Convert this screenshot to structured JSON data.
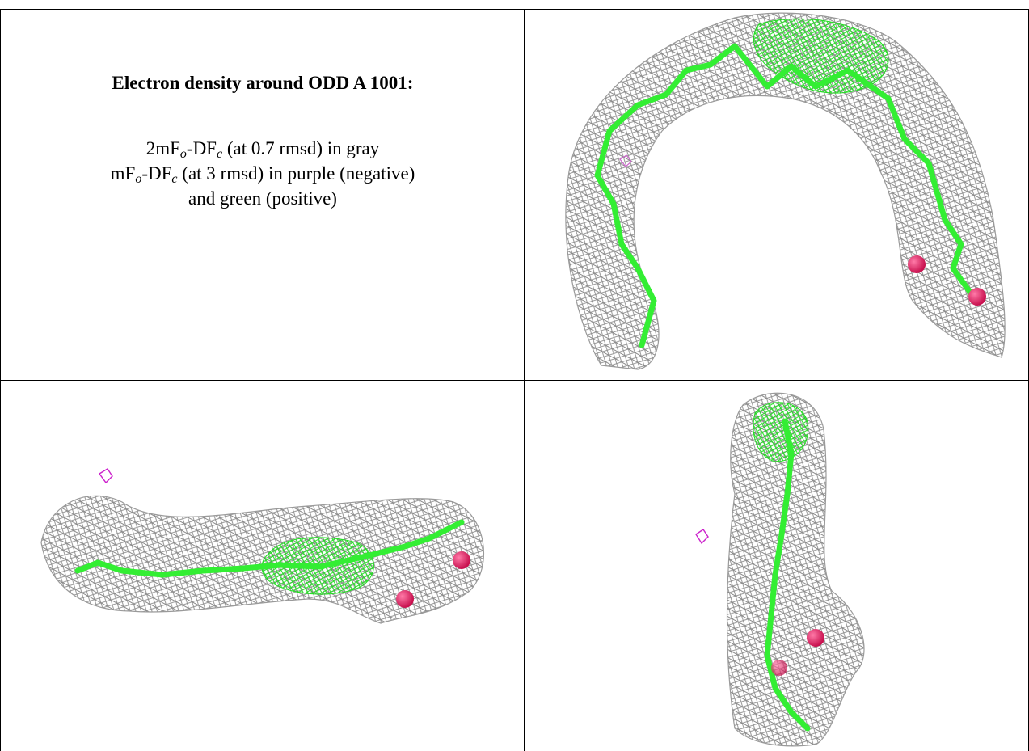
{
  "caption": {
    "title": "Electron density around ODD A 1001:",
    "map1_prefix": "2mF",
    "map1_sub1": "o",
    "map1_mid": "-DF",
    "map1_sub2": "c",
    "map1_suffix": " (at 0.7 rmsd) in gray",
    "map2_prefix": "mF",
    "map2_sub1": "o",
    "map2_mid": "-DF",
    "map2_sub2": "c",
    "map2_suffix": " (at 3 rmsd) in purple (negative)",
    "map3": "and green (positive)"
  },
  "colors": {
    "mesh_2fofc": "#8a8a8a",
    "carbon_stick": "#33ee33",
    "oxygen_atom": "#e0246a",
    "negative_difference": "#cc22cc",
    "positive_difference": "#22dd22"
  },
  "panels": [
    {
      "view": "top-right",
      "shape": "arc"
    },
    {
      "view": "bottom-left",
      "shape": "horizontal"
    },
    {
      "view": "bottom-right",
      "shape": "vertical"
    }
  ]
}
